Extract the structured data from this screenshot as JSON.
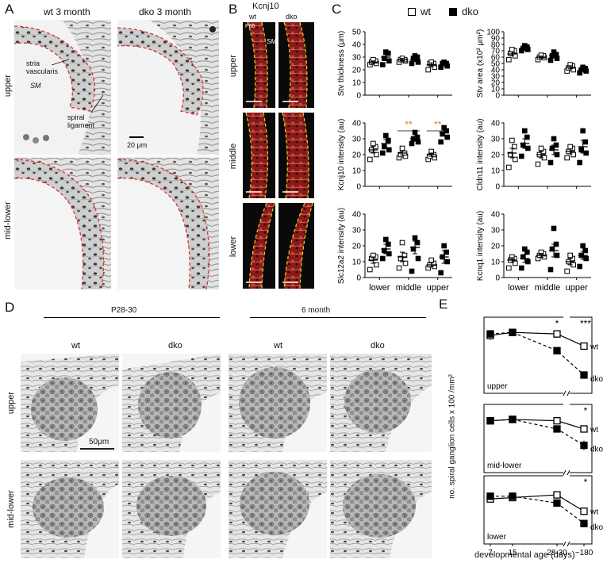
{
  "panel_A": {
    "letter": "A",
    "col_wt": "wt 3 month",
    "col_dko": "dko  3 month",
    "row_upper": "upper",
    "row_midlower": "mid-lower",
    "label_stria": "stria\nvascularis",
    "label_sm": "SM",
    "label_spiral": "spiral\nligament",
    "scalebar": "20 μm"
  },
  "panel_B": {
    "letter": "B",
    "title": "Kcnj10",
    "col_wt": "wt",
    "col_dko": "dko",
    "row_upper": "upper",
    "row_middle": "middle",
    "row_lower": "lower",
    "tag_p60": "P60",
    "tag_sm": "SM"
  },
  "panel_C": {
    "letter": "C",
    "legend_wt": "wt",
    "legend_dko": "dko"
  },
  "panel_D": {
    "letter": "D",
    "group1": "P28-30",
    "group2": "6 month",
    "col_labels": [
      "wt",
      "dko",
      "wt",
      "dko"
    ],
    "row_upper": "upper",
    "row_midlower": "mid-lower",
    "scalebar": "50μm"
  },
  "panel_E": {
    "letter": "E",
    "ylabel": "no. spiral ganglion cells  x 100 /mm²",
    "xlabel": "developmental age (days)"
  },
  "chart_data": [
    {
      "id": "C-stv-thickness",
      "type": "scatter",
      "ylabel": "Stv  thickness (μm)",
      "ylim": [
        0,
        50
      ],
      "yticks": [
        0,
        10,
        20,
        30,
        40,
        50
      ],
      "categories": [
        "lower",
        "middle",
        "upper"
      ],
      "series": [
        {
          "name": "wt",
          "values": [
            [
              24,
              25,
              26,
              27,
              28
            ],
            [
              26,
              27,
              28,
              28,
              29
            ],
            [
              20,
              22,
              25,
              25,
              26
            ]
          ],
          "mean": [
            26,
            28,
            24
          ],
          "sem": [
            1,
            1,
            1.5
          ]
        },
        {
          "name": "dko",
          "values": [
            [
              24,
              27,
              29,
              33,
              34
            ],
            [
              25,
              26,
              29,
              30,
              31
            ],
            [
              22,
              23,
              25,
              25,
              26
            ]
          ],
          "mean": [
            30,
            28,
            24
          ],
          "sem": [
            2,
            1.5,
            1
          ]
        }
      ],
      "show_xticklabels": false
    },
    {
      "id": "C-stv-area",
      "type": "scatter",
      "ylabel": "Stv  area (x10² μm²)",
      "ylim": [
        0,
        100
      ],
      "yticks": [
        0,
        10,
        20,
        30,
        40,
        50,
        60,
        70,
        80,
        90,
        100
      ],
      "categories": [
        "lower",
        "middle",
        "upper"
      ],
      "series": [
        {
          "name": "wt",
          "values": [
            [
              56,
              62,
              66,
              70,
              72
            ],
            [
              56,
              59,
              60,
              62,
              63
            ],
            [
              38,
              40,
              43,
              46,
              48
            ]
          ],
          "mean": [
            65,
            60,
            44
          ],
          "sem": [
            3,
            1.5,
            2.5
          ]
        },
        {
          "name": "dko",
          "values": [
            [
              70,
              72,
              74,
              76,
              78
            ],
            [
              55,
              58,
              62,
              64,
              68
            ],
            [
              35,
              38,
              40,
              42,
              44
            ]
          ],
          "mean": [
            74,
            62,
            40
          ],
          "sem": [
            2,
            2.5,
            2
          ]
        }
      ],
      "show_xticklabels": false
    },
    {
      "id": "C-kcnj10",
      "type": "scatter",
      "ylabel": "Kcnj10 intensity (au)",
      "ylim": [
        0,
        40
      ],
      "yticks": [
        0,
        10,
        20,
        30,
        40
      ],
      "categories": [
        "lower",
        "middle",
        "upper"
      ],
      "series": [
        {
          "name": "wt",
          "values": [
            [
              17,
              20,
              23,
              25,
              27
            ],
            [
              18,
              19,
              20,
              21,
              24
            ],
            [
              17,
              18,
              19,
              20,
              22
            ]
          ],
          "mean": [
            23,
            21,
            20
          ],
          "sem": [
            2,
            1.2,
            1
          ]
        },
        {
          "name": "dko",
          "values": [
            [
              21,
              23,
              25,
              29,
              32
            ],
            [
              27,
              28,
              30,
              31,
              34
            ],
            [
              28,
              31,
              33,
              35,
              37
            ]
          ],
          "mean": [
            27,
            30,
            34
          ],
          "sem": [
            2.5,
            1.5,
            2
          ]
        }
      ],
      "significance": [
        {
          "category": "middle",
          "label": "**"
        },
        {
          "category": "upper",
          "label": "**"
        }
      ],
      "show_xticklabels": false
    },
    {
      "id": "C-cldn11",
      "type": "scatter",
      "ylabel": "Cldn11 intensity (au)",
      "ylim": [
        0,
        40
      ],
      "yticks": [
        0,
        10,
        20,
        30,
        40
      ],
      "categories": [
        "lower",
        "middle",
        "upper"
      ],
      "series": [
        {
          "name": "wt",
          "values": [
            [
              12,
              17,
              20,
              25,
              29
            ],
            [
              14,
              18,
              20,
              22,
              24
            ],
            [
              18,
              20,
              22,
              24,
              25
            ]
          ],
          "mean": [
            21,
            20,
            22
          ],
          "sem": [
            3,
            2,
            1.5
          ]
        },
        {
          "name": "dko",
          "values": [
            [
              19,
              24,
              26,
              31,
              35
            ],
            [
              15,
              20,
              24,
              26,
              30
            ],
            [
              15,
              21,
              23,
              28,
              35
            ]
          ],
          "mean": [
            27,
            23,
            25
          ],
          "sem": [
            3,
            3,
            4
          ]
        }
      ],
      "show_xticklabels": false
    },
    {
      "id": "C-slc12a2",
      "type": "scatter",
      "ylabel": "Slc12a2 intensity (au)",
      "ylim": [
        0,
        40
      ],
      "yticks": [
        0,
        10,
        20,
        30,
        40
      ],
      "categories": [
        "lower",
        "middle",
        "upper"
      ],
      "series": [
        {
          "name": "wt",
          "values": [
            [
              5,
              8,
              12,
              13,
              14
            ],
            [
              6,
              9,
              12,
              14,
              22
            ],
            [
              6,
              7,
              8,
              9,
              11
            ]
          ],
          "mean": [
            11,
            13,
            8
          ],
          "sem": [
            2,
            3,
            1.2
          ]
        },
        {
          "name": "dko",
          "values": [
            [
              12,
              15,
              17,
              21,
              24
            ],
            [
              4,
              12,
              18,
              22,
              25
            ],
            [
              3,
              10,
              13,
              16,
              20
            ]
          ],
          "mean": [
            18,
            19,
            13
          ],
          "sem": [
            3,
            4,
            4
          ]
        }
      ],
      "show_xticklabels": true
    },
    {
      "id": "C-kcnq1",
      "type": "scatter",
      "ylabel": "Kcnq1 intensity (au)",
      "ylim": [
        0,
        40
      ],
      "yticks": [
        0,
        10,
        20,
        30,
        40
      ],
      "categories": [
        "lower",
        "middle",
        "upper"
      ],
      "series": [
        {
          "name": "wt",
          "values": [
            [
              6,
              9,
              11,
              12,
              13
            ],
            [
              12,
              13,
              14,
              15,
              16
            ],
            [
              4,
              8,
              10,
              12,
              14
            ]
          ],
          "mean": [
            11,
            14,
            10
          ],
          "sem": [
            1.5,
            1.2,
            2
          ]
        },
        {
          "name": "dko",
          "values": [
            [
              6,
              10,
              13,
              16,
              18
            ],
            [
              5,
              14,
              18,
              21,
              31
            ],
            [
              7,
              12,
              14,
              17,
              20
            ]
          ],
          "mean": [
            12,
            17,
            14
          ],
          "sem": [
            2.5,
            4,
            2.5
          ]
        }
      ],
      "show_xticklabels": true
    },
    {
      "id": "E-upper",
      "type": "line",
      "label": "upper",
      "x_labels": [
        "7",
        "15",
        "28-30",
        "~180"
      ],
      "ylim": [
        0,
        50
      ],
      "yticks": [
        0,
        10,
        20,
        30,
        40,
        50
      ],
      "series": [
        {
          "name": "wt",
          "values": [
            38,
            40,
            39,
            31
          ],
          "err": [
            3,
            1.5,
            2.5,
            2
          ]
        },
        {
          "name": "dko",
          "values": [
            39,
            40,
            28,
            12
          ],
          "err": [
            2.5,
            1.5,
            2,
            1.5
          ]
        }
      ],
      "significance": [
        {
          "x": "28-30",
          "label": "*"
        },
        {
          "x": "~180",
          "label": "***"
        }
      ]
    },
    {
      "id": "E-midlower",
      "type": "line",
      "label": "mid-lower",
      "x_labels": [
        "7",
        "15",
        "28-30",
        "~180"
      ],
      "ylim": [
        0,
        50
      ],
      "yticks": [
        0,
        10,
        20,
        30,
        40,
        50
      ],
      "series": [
        {
          "name": "wt",
          "values": [
            38,
            39,
            38,
            32
          ],
          "err": [
            2,
            1.5,
            2,
            2
          ]
        },
        {
          "name": "dko",
          "values": [
            38,
            39,
            32,
            20
          ],
          "err": [
            2,
            1.5,
            2,
            3.5
          ]
        }
      ],
      "significance": [
        {
          "x": "~180",
          "label": "*"
        }
      ]
    },
    {
      "id": "E-lower",
      "type": "line",
      "label": "lower",
      "x_labels": [
        "7",
        "15",
        "28-30",
        "~180"
      ],
      "ylim": [
        0,
        50
      ],
      "yticks": [
        0,
        10,
        20,
        30,
        40,
        50
      ],
      "series": [
        {
          "name": "wt",
          "values": [
            33,
            34,
            36,
            24
          ],
          "err": [
            2,
            2,
            2,
            2
          ]
        },
        {
          "name": "dko",
          "values": [
            35,
            35,
            30,
            15
          ],
          "err": [
            2,
            2,
            2,
            2
          ]
        }
      ],
      "significance": [
        {
          "x": "~180",
          "label": "*"
        }
      ]
    }
  ]
}
